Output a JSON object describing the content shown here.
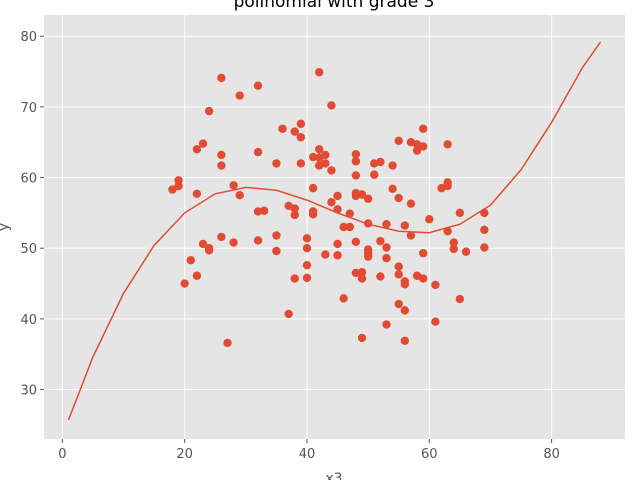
{
  "colors": {
    "background": "#E5E5E5",
    "grid": "#FFFFFF",
    "points": "#E24A33",
    "curve": "#E24A33",
    "text": "#555555",
    "title": "#000000"
  },
  "chart_data": {
    "type": "scatter",
    "title": "polinomial with grade 3",
    "xlabel": "x3",
    "ylabel": "y",
    "xlim": [
      -3,
      92
    ],
    "ylim": [
      23,
      83
    ],
    "xticks": [
      0,
      20,
      40,
      60,
      80
    ],
    "yticks": [
      30,
      40,
      50,
      60,
      70,
      80
    ],
    "grid": true,
    "series": [
      {
        "name": "data",
        "kind": "scatter",
        "points": [
          [
            18,
            58.3
          ],
          [
            19,
            58.8
          ],
          [
            19,
            59.6
          ],
          [
            20,
            45.0
          ],
          [
            21,
            48.3
          ],
          [
            22,
            57.7
          ],
          [
            22,
            64.0
          ],
          [
            22,
            46.1
          ],
          [
            23,
            50.6
          ],
          [
            23,
            64.8
          ],
          [
            24,
            49.7
          ],
          [
            24,
            50.0
          ],
          [
            24,
            69.4
          ],
          [
            26,
            74.1
          ],
          [
            26,
            63.2
          ],
          [
            26,
            61.7
          ],
          [
            26,
            51.6
          ],
          [
            27,
            36.6
          ],
          [
            28,
            58.9
          ],
          [
            28,
            50.8
          ],
          [
            29,
            71.6
          ],
          [
            29,
            57.5
          ],
          [
            32,
            73.0
          ],
          [
            32,
            63.6
          ],
          [
            32,
            55.2
          ],
          [
            32,
            51.1
          ],
          [
            33,
            55.3
          ],
          [
            35,
            62.0
          ],
          [
            35,
            51.8
          ],
          [
            35,
            49.6
          ],
          [
            36,
            66.9
          ],
          [
            37,
            56.0
          ],
          [
            37,
            40.7
          ],
          [
            38,
            66.5
          ],
          [
            38,
            55.6
          ],
          [
            38,
            54.7
          ],
          [
            38,
            45.7
          ],
          [
            39,
            67.6
          ],
          [
            39,
            65.7
          ],
          [
            39,
            62.0
          ],
          [
            40,
            51.4
          ],
          [
            40,
            50.0
          ],
          [
            40,
            47.6
          ],
          [
            40,
            45.8
          ],
          [
            41,
            62.9
          ],
          [
            41,
            58.5
          ],
          [
            41,
            55.2
          ],
          [
            41,
            54.8
          ],
          [
            42,
            74.9
          ],
          [
            42,
            64.0
          ],
          [
            42,
            62.8
          ],
          [
            42,
            61.7
          ],
          [
            43,
            63.2
          ],
          [
            43,
            62.0
          ],
          [
            43,
            49.1
          ],
          [
            44,
            70.2
          ],
          [
            44,
            61.0
          ],
          [
            44,
            56.5
          ],
          [
            45,
            57.4
          ],
          [
            45,
            55.5
          ],
          [
            45,
            50.6
          ],
          [
            45,
            49.0
          ],
          [
            46,
            53.0
          ],
          [
            46,
            42.9
          ],
          [
            47,
            54.9
          ],
          [
            47,
            53.0
          ],
          [
            48,
            63.3
          ],
          [
            48,
            62.3
          ],
          [
            48,
            60.3
          ],
          [
            48,
            57.8
          ],
          [
            48,
            57.4
          ],
          [
            48,
            50.9
          ],
          [
            48,
            46.5
          ],
          [
            49,
            57.6
          ],
          [
            49,
            46.6
          ],
          [
            49,
            45.7
          ],
          [
            49,
            37.3
          ],
          [
            50,
            57.0
          ],
          [
            50,
            53.5
          ],
          [
            50,
            49.8
          ],
          [
            50,
            49.3
          ],
          [
            50,
            48.8
          ],
          [
            51,
            62.0
          ],
          [
            51,
            60.4
          ],
          [
            52,
            62.2
          ],
          [
            52,
            51.0
          ],
          [
            52,
            46.0
          ],
          [
            53,
            53.4
          ],
          [
            53,
            50.1
          ],
          [
            53,
            48.6
          ],
          [
            53,
            39.2
          ],
          [
            54,
            61.7
          ],
          [
            54,
            58.4
          ],
          [
            55,
            65.2
          ],
          [
            55,
            57.1
          ],
          [
            55,
            47.4
          ],
          [
            55,
            46.3
          ],
          [
            55,
            42.1
          ],
          [
            56,
            53.2
          ],
          [
            56,
            45.3
          ],
          [
            56,
            44.9
          ],
          [
            56,
            41.2
          ],
          [
            56,
            36.9
          ],
          [
            57,
            65.0
          ],
          [
            57,
            56.3
          ],
          [
            57,
            51.8
          ],
          [
            58,
            64.7
          ],
          [
            58,
            63.8
          ],
          [
            58,
            46.1
          ],
          [
            59,
            66.9
          ],
          [
            59,
            64.4
          ],
          [
            59,
            49.3
          ],
          [
            59,
            45.7
          ],
          [
            60,
            54.1
          ],
          [
            61,
            44.8
          ],
          [
            61,
            39.6
          ],
          [
            62,
            58.5
          ],
          [
            63,
            64.7
          ],
          [
            63,
            59.3
          ],
          [
            63,
            58.8
          ],
          [
            63,
            52.4
          ],
          [
            64,
            50.8
          ],
          [
            64,
            49.9
          ],
          [
            65,
            55.0
          ],
          [
            65,
            42.8
          ],
          [
            66,
            49.5
          ],
          [
            69,
            55.0
          ],
          [
            69,
            52.6
          ],
          [
            69,
            50.1
          ]
        ]
      },
      {
        "name": "fit",
        "kind": "line",
        "points": [
          [
            1,
            25.7
          ],
          [
            5,
            34.6
          ],
          [
            10,
            43.6
          ],
          [
            15,
            50.4
          ],
          [
            20,
            55.0
          ],
          [
            25,
            57.7
          ],
          [
            30,
            58.6
          ],
          [
            35,
            58.2
          ],
          [
            40,
            56.8
          ],
          [
            45,
            55.0
          ],
          [
            50,
            53.4
          ],
          [
            55,
            52.4
          ],
          [
            60,
            52.2
          ],
          [
            65,
            53.4
          ],
          [
            70,
            56.1
          ],
          [
            75,
            61.1
          ],
          [
            80,
            67.8
          ],
          [
            85,
            75.5
          ],
          [
            88,
            79.2
          ]
        ]
      }
    ]
  }
}
